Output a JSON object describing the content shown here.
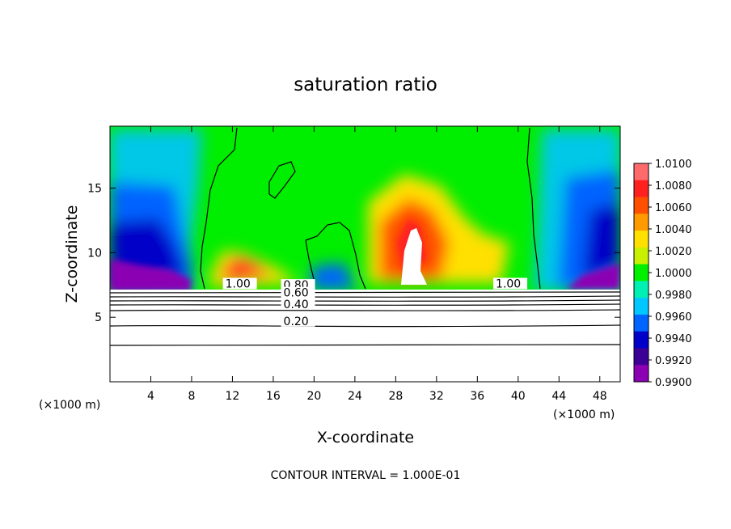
{
  "chart_data": {
    "type": "heatmap",
    "title": "saturation ratio",
    "xlabel": "X-coordinate",
    "ylabel": "Z-coordinate",
    "x_unit_left": "(×1000 m)",
    "x_unit_right": "(×1000 m)",
    "xlim": [
      0,
      50
    ],
    "ylim": [
      0,
      19.8
    ],
    "x_ticks": [
      4,
      8,
      12,
      16,
      20,
      24,
      28,
      32,
      36,
      40,
      44,
      48
    ],
    "y_ticks": [
      5,
      10,
      15
    ],
    "colorbar": {
      "levels": [
        "1.0100",
        "1.0080",
        "1.0060",
        "1.0040",
        "1.0020",
        "1.0000",
        "0.9980",
        "0.9960",
        "0.9940",
        "0.9920",
        "0.9900"
      ],
      "colors": [
        "#ff6b6b",
        "#ff2020",
        "#ff5000",
        "#ff9a00",
        "#ffe000",
        "#c8f000",
        "#00f000",
        "#00f0b4",
        "#00c8ff",
        "#0064ff",
        "#0000c8",
        "#3c0096",
        "#8c00b4"
      ]
    },
    "contour_labels": [
      {
        "text": "1.00",
        "x": 11.3,
        "z": 7.3
      },
      {
        "text": "0.80",
        "x": 17.0,
        "z": 7.2
      },
      {
        "text": "0.60",
        "x": 17.0,
        "z": 6.6
      },
      {
        "text": "0.40",
        "x": 17.0,
        "z": 5.7
      },
      {
        "text": "0.20",
        "x": 17.0,
        "z": 4.4
      },
      {
        "text": "1.00",
        "x": 37.8,
        "z": 7.3
      }
    ],
    "contour_levels_z": [
      2.9,
      4.5,
      5.3,
      5.9,
      6.2,
      6.5,
      6.8,
      7.05
    ],
    "footer": "CONTOUR INTERVAL = 1.000E-01"
  }
}
